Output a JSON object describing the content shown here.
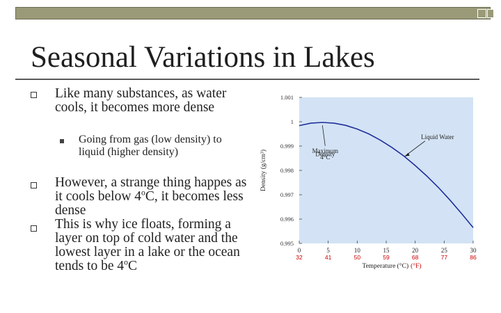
{
  "slide": {
    "title": "Seasonal Variations in Lakes",
    "bullets": [
      "Like many substances, as water cools, it becomes more dense",
      "However, a strange thing happes as it cools below 4",
      "This is why ice floats, forming a layer on top of cold water and the lowest layer in a lake or the ocean tends to be 4"
    ],
    "sub_bullets": [
      "Going from gas (low density) to liquid (higher density)"
    ],
    "degree_symbol": "o",
    "unit_suffix_1": "C,",
    "line2_rest": "it becomes less dense",
    "unit_suffix_2": "C"
  },
  "colors": {
    "topbar": "#9a9a78",
    "curve": "#1f2f9a",
    "fahrenheit": "#cc0000",
    "chart_bg": "#d3e3f5"
  },
  "chart_data": {
    "type": "line",
    "title": "",
    "xlabel": "Temperature (°C)",
    "x2label": "(°F)",
    "ylabel": "Density (g/cm³)",
    "xlim": [
      0,
      30
    ],
    "ylim": [
      0.995,
      1.001
    ],
    "x_ticks": [
      0,
      5,
      10,
      15,
      20,
      25,
      30
    ],
    "x_ticks_f": [
      32,
      41,
      50,
      59,
      68,
      77,
      86
    ],
    "y_tick_labels": [
      "1.001",
      "1",
      "0.999",
      "0.998",
      "0.997",
      "0.996",
      "0.995"
    ],
    "series": [
      {
        "name": "Liquid Water",
        "x": [
          0,
          2,
          4,
          6,
          8,
          10,
          12,
          14,
          16,
          18,
          20,
          22,
          24,
          26,
          28,
          30
        ],
        "y": [
          0.99984,
          0.99994,
          0.99997,
          0.99994,
          0.99985,
          0.9997,
          0.9995,
          0.99924,
          0.99894,
          0.9986,
          0.9982,
          0.99777,
          0.9973,
          0.99678,
          0.99623,
          0.99565
        ]
      }
    ],
    "annotations": [
      {
        "text": "Liquid Water",
        "x": 20.5,
        "y": 0.99895
      },
      {
        "text": "Maximum",
        "x": 4,
        "y": 0.99872
      },
      {
        "text": "Density",
        "x": 4,
        "y": 0.99859
      },
      {
        "text": "4°C",
        "x": 4,
        "y": 0.99846
      }
    ]
  }
}
